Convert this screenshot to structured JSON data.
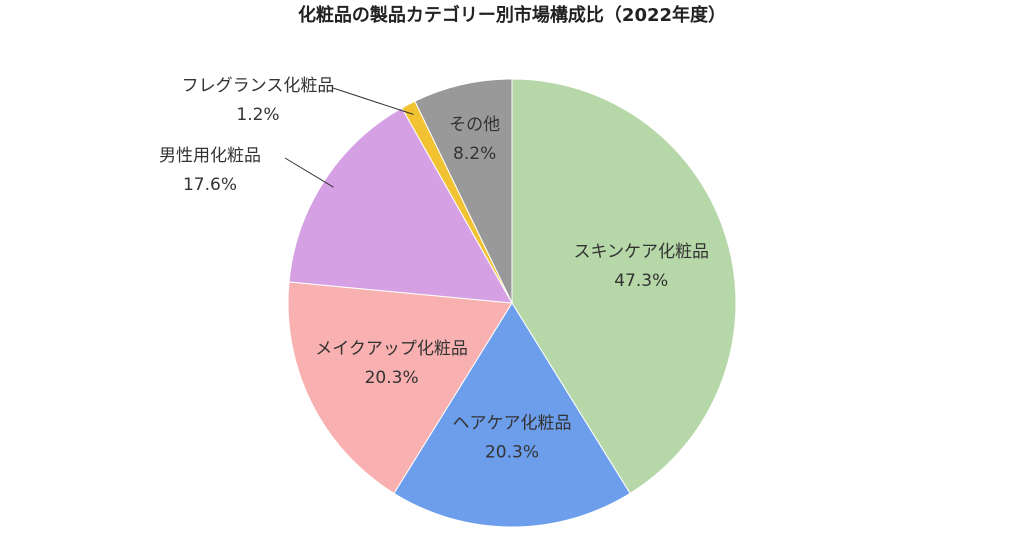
{
  "chart_data": {
    "type": "pie",
    "title": "化粧品の製品カテゴリー別市場構成比（2022年度）",
    "categories": [
      "スキンケア化粧品",
      "ヘアケア化粧品",
      "メイクアップ化粧品",
      "男性用化粧品",
      "フレグランス化粧品",
      "その他"
    ],
    "values": [
      47.3,
      20.3,
      20.3,
      17.6,
      1.2,
      8.2
    ],
    "value_labels": [
      "47.3%",
      "20.3%",
      "20.3%",
      "17.6%",
      "1.2%",
      "8.2%"
    ],
    "colors": [
      "#b6d7a8",
      "#6d9eeb",
      "#f8b0b0",
      "#d5a0e4",
      "#f1c232",
      "#999999"
    ]
  }
}
